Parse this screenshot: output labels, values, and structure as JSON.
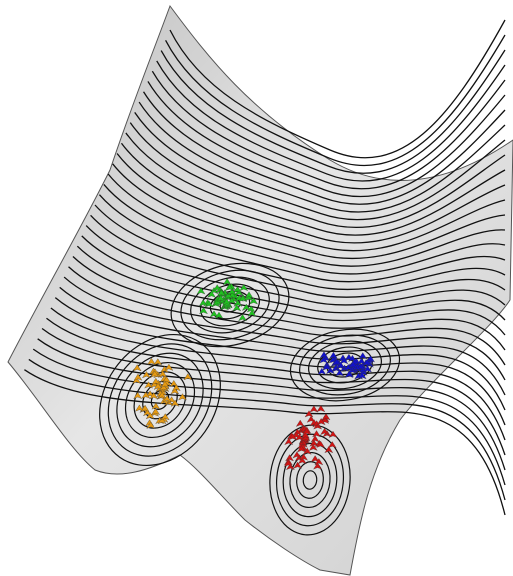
{
  "figure": {
    "kind": "3d-density-surface-with-contours",
    "surface_color": "#d9d9d9",
    "contour_color": "#111111",
    "clusters": [
      {
        "id": "green",
        "color": "#1fc21f",
        "marker": "small-3d-arrow"
      },
      {
        "id": "orange",
        "color": "#e69a12",
        "marker": "small-3d-arrow"
      },
      {
        "id": "blue",
        "color": "#1111cc",
        "marker": "small-3d-arrow"
      },
      {
        "id": "red",
        "color": "#d01414",
        "marker": "small-3d-arrow"
      }
    ]
  }
}
